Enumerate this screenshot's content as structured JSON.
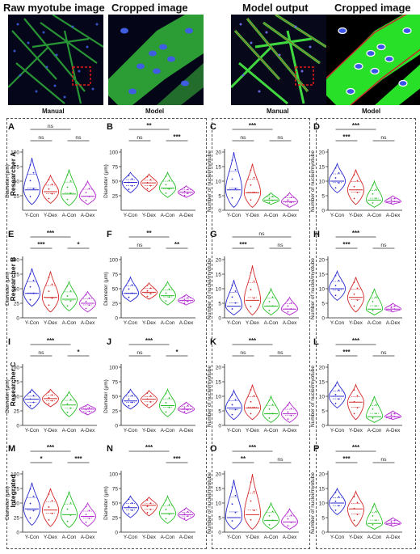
{
  "images": {
    "titles": [
      "Raw myotube image",
      "Cropped image",
      "Model output",
      "Cropped image"
    ],
    "sublabels": [
      "Manual",
      "Model",
      "Manual",
      "Model"
    ]
  },
  "row_labels": [
    "Researcher A",
    "Researcher B",
    "Researcher C",
    "Integrated"
  ],
  "categories": [
    "Y-Con",
    "Y-Dex",
    "A-Con",
    "A-Dex"
  ],
  "colors": {
    "Y-Con": "#2b2bd0",
    "Y-Dex": "#d42b2b",
    "A-Con": "#2bbf2b",
    "A-Dex": "#b32bd0"
  },
  "chart_data": [
    {
      "panel": "A",
      "type": "violin",
      "ylabel": "Diameter (μm)",
      "ylim": [
        0,
        100
      ],
      "yticks": [
        25,
        50,
        75,
        100
      ],
      "categories": [
        "Y-Con",
        "Y-Dex",
        "A-Con",
        "A-Dex"
      ],
      "medians": [
        35,
        32,
        28,
        24
      ],
      "ranges": [
        [
          10,
          90
        ],
        [
          12,
          60
        ],
        [
          8,
          70
        ],
        [
          10,
          50
        ]
      ],
      "sig": [
        {
          "pair": [
            0,
            2
          ],
          "label": "ns"
        },
        {
          "pair": [
            0,
            1
          ],
          "label": "ns"
        },
        {
          "pair": [
            2,
            3
          ],
          "label": "ns"
        }
      ]
    },
    {
      "panel": "B",
      "type": "violin",
      "ylabel": "Diameter (μm)",
      "ylim": [
        0,
        100
      ],
      "yticks": [
        25,
        50,
        75,
        100
      ],
      "categories": [
        "Y-Con",
        "Y-Dex",
        "A-Con",
        "A-Dex"
      ],
      "medians": [
        48,
        47,
        38,
        31
      ],
      "ranges": [
        [
          30,
          65
        ],
        [
          32,
          62
        ],
        [
          22,
          65
        ],
        [
          22,
          42
        ]
      ],
      "sig": [
        {
          "pair": [
            0,
            2
          ],
          "label": "**"
        },
        {
          "pair": [
            0,
            1
          ],
          "label": "ns"
        },
        {
          "pair": [
            2,
            3
          ],
          "label": "***"
        }
      ]
    },
    {
      "panel": "C",
      "type": "violin",
      "ylabel": "Number of nuclei/myotube",
      "ylim": [
        0,
        20
      ],
      "yticks": [
        0,
        5,
        10,
        15,
        20
      ],
      "categories": [
        "Y-Con",
        "Y-Dex",
        "A-Con",
        "A-Dex"
      ],
      "medians": [
        7,
        6,
        3.5,
        3
      ],
      "ranges": [
        [
          1,
          20
        ],
        [
          1,
          16
        ],
        [
          2,
          6
        ],
        [
          1,
          6
        ]
      ],
      "sig": [
        {
          "pair": [
            0,
            2
          ],
          "label": "***"
        },
        {
          "pair": [
            0,
            1
          ],
          "label": "ns"
        },
        {
          "pair": [
            2,
            3
          ],
          "label": "ns"
        }
      ]
    },
    {
      "panel": "D",
      "type": "violin",
      "ylabel": "Number of nuclei/myotube",
      "ylim": [
        0,
        20
      ],
      "yticks": [
        0,
        5,
        10,
        15,
        20
      ],
      "categories": [
        "Y-Con",
        "Y-Dex",
        "A-Con",
        "A-Dex"
      ],
      "medians": [
        10,
        7,
        3.5,
        3
      ],
      "ranges": [
        [
          6,
          16
        ],
        [
          2,
          14
        ],
        [
          1,
          10
        ],
        [
          2,
          5
        ]
      ],
      "sig": [
        {
          "pair": [
            0,
            2
          ],
          "label": "***"
        },
        {
          "pair": [
            0,
            1
          ],
          "label": "***"
        },
        {
          "pair": [
            2,
            3
          ],
          "label": "ns"
        }
      ]
    },
    {
      "panel": "E",
      "type": "violin",
      "ylabel": "Diameter (μm)",
      "ylim": [
        0,
        100
      ],
      "yticks": [
        0,
        25,
        50,
        75,
        100
      ],
      "categories": [
        "Y-Con",
        "Y-Dex",
        "A-Con",
        "A-Dex"
      ],
      "medians": [
        42,
        35,
        32,
        25
      ],
      "ranges": [
        [
          20,
          85
        ],
        [
          10,
          80
        ],
        [
          12,
          62
        ],
        [
          10,
          45
        ]
      ],
      "sig": [
        {
          "pair": [
            0,
            2
          ],
          "label": "***"
        },
        {
          "pair": [
            0,
            1
          ],
          "label": "***"
        },
        {
          "pair": [
            2,
            3
          ],
          "label": "*"
        }
      ]
    },
    {
      "panel": "F",
      "type": "violin",
      "ylabel": "Diameter (μm)",
      "ylim": [
        0,
        100
      ],
      "yticks": [
        0,
        25,
        50,
        75,
        100
      ],
      "categories": [
        "Y-Con",
        "Y-Dex",
        "A-Con",
        "A-Dex"
      ],
      "medians": [
        42,
        44,
        38,
        30
      ],
      "ranges": [
        [
          28,
          70
        ],
        [
          32,
          60
        ],
        [
          22,
          62
        ],
        [
          22,
          40
        ]
      ],
      "sig": [
        {
          "pair": [
            0,
            2
          ],
          "label": "**"
        },
        {
          "pair": [
            0,
            1
          ],
          "label": "ns"
        },
        {
          "pair": [
            2,
            3
          ],
          "label": "**"
        }
      ]
    },
    {
      "panel": "G",
      "type": "violin",
      "ylabel": "Number of nuclei/myotube",
      "ylim": [
        0,
        20
      ],
      "yticks": [
        0,
        5,
        10,
        15,
        20
      ],
      "categories": [
        "Y-Con",
        "Y-Dex",
        "A-Con",
        "A-Dex"
      ],
      "medians": [
        4,
        6,
        4,
        3
      ],
      "ranges": [
        [
          1,
          13
        ],
        [
          1,
          18
        ],
        [
          1,
          10
        ],
        [
          1,
          7
        ]
      ],
      "sig": [
        {
          "pair": [
            0,
            3
          ],
          "label": "ns"
        },
        {
          "pair": [
            0,
            1
          ],
          "label": "***"
        },
        {
          "pair": [
            2,
            3
          ],
          "label": "ns"
        }
      ]
    },
    {
      "panel": "H",
      "type": "violin",
      "ylabel": "Number of nuclei/myotube",
      "ylim": [
        0,
        20
      ],
      "yticks": [
        0,
        5,
        10,
        15,
        20
      ],
      "categories": [
        "Y-Con",
        "Y-Dex",
        "A-Con",
        "A-Dex"
      ],
      "medians": [
        10,
        7,
        3,
        3
      ],
      "ranges": [
        [
          6,
          16
        ],
        [
          2,
          14
        ],
        [
          1,
          10
        ],
        [
          2,
          5
        ]
      ],
      "sig": [
        {
          "pair": [
            0,
            2
          ],
          "label": "***"
        },
        {
          "pair": [
            0,
            1
          ],
          "label": "***"
        },
        {
          "pair": [
            2,
            3
          ],
          "label": "ns"
        }
      ]
    },
    {
      "panel": "I",
      "type": "violin",
      "ylabel": "Diameter (μm)",
      "ylim": [
        0,
        100
      ],
      "yticks": [
        0,
        25,
        50,
        75,
        100
      ],
      "categories": [
        "Y-Con",
        "Y-Dex",
        "A-Con",
        "A-Dex"
      ],
      "medians": [
        45,
        46,
        35,
        28
      ],
      "ranges": [
        [
          28,
          62
        ],
        [
          32,
          62
        ],
        [
          15,
          58
        ],
        [
          18,
          36
        ]
      ],
      "sig": [
        {
          "pair": [
            0,
            2
          ],
          "label": "***"
        },
        {
          "pair": [
            0,
            1
          ],
          "label": "ns"
        },
        {
          "pair": [
            2,
            3
          ],
          "label": "*"
        }
      ]
    },
    {
      "panel": "J",
      "type": "violin",
      "ylabel": "Diameter (μm)",
      "ylim": [
        0,
        100
      ],
      "yticks": [
        0,
        25,
        50,
        75,
        100
      ],
      "categories": [
        "Y-Con",
        "Y-Dex",
        "A-Con",
        "A-Dex"
      ],
      "medians": [
        42,
        45,
        34,
        28
      ],
      "ranges": [
        [
          28,
          62
        ],
        [
          30,
          60
        ],
        [
          15,
          62
        ],
        [
          20,
          40
        ]
      ],
      "sig": [
        {
          "pair": [
            0,
            2
          ],
          "label": "***"
        },
        {
          "pair": [
            0,
            1
          ],
          "label": "ns"
        },
        {
          "pair": [
            2,
            3
          ],
          "label": "*"
        }
      ]
    },
    {
      "panel": "K",
      "type": "violin",
      "ylabel": "Number of nuclei/myotube",
      "ylim": [
        0,
        20
      ],
      "yticks": [
        0,
        5,
        10,
        15,
        20
      ],
      "categories": [
        "Y-Con",
        "Y-Dex",
        "A-Con",
        "A-Dex"
      ],
      "medians": [
        6,
        6,
        4,
        4
      ],
      "ranges": [
        [
          2,
          12
        ],
        [
          2,
          14
        ],
        [
          1,
          10
        ],
        [
          1,
          8
        ]
      ],
      "sig": [
        {
          "pair": [
            0,
            2
          ],
          "label": "***"
        },
        {
          "pair": [
            0,
            1
          ],
          "label": "ns"
        },
        {
          "pair": [
            2,
            3
          ],
          "label": "ns"
        }
      ]
    },
    {
      "panel": "L",
      "type": "violin",
      "ylabel": "Number of nuclei/myotube",
      "ylim": [
        0,
        20
      ],
      "yticks": [
        0,
        5,
        10,
        15,
        20
      ],
      "categories": [
        "Y-Con",
        "Y-Dex",
        "A-Con",
        "A-Dex"
      ],
      "medians": [
        10,
        8,
        3,
        3
      ],
      "ranges": [
        [
          6,
          15
        ],
        [
          2,
          14
        ],
        [
          1,
          10
        ],
        [
          2,
          5
        ]
      ],
      "sig": [
        {
          "pair": [
            0,
            2
          ],
          "label": "***"
        },
        {
          "pair": [
            0,
            1
          ],
          "label": "***"
        },
        {
          "pair": [
            2,
            3
          ],
          "label": "ns"
        }
      ]
    },
    {
      "panel": "M",
      "type": "violin",
      "ylabel": "Diameter (μm)",
      "ylim": [
        0,
        100
      ],
      "yticks": [
        0,
        25,
        50,
        75,
        100
      ],
      "categories": [
        "Y-Con",
        "Y-Dex",
        "A-Con",
        "A-Dex"
      ],
      "medians": [
        40,
        38,
        30,
        27
      ],
      "ranges": [
        [
          12,
          85
        ],
        [
          10,
          75
        ],
        [
          8,
          70
        ],
        [
          10,
          50
        ]
      ],
      "sig": [
        {
          "pair": [
            0,
            2
          ],
          "label": "***"
        },
        {
          "pair": [
            0,
            1
          ],
          "label": "*"
        },
        {
          "pair": [
            2,
            3
          ],
          "label": "***"
        }
      ]
    },
    {
      "panel": "N",
      "type": "violin",
      "ylabel": "Diameter (μm)",
      "ylim": [
        0,
        100
      ],
      "yticks": [
        0,
        25,
        50,
        75,
        100
      ],
      "categories": [
        "Y-Con",
        "Y-Dex",
        "A-Con",
        "A-Dex"
      ],
      "medians": [
        42,
        46,
        32,
        30
      ],
      "ranges": [
        [
          25,
          62
        ],
        [
          28,
          60
        ],
        [
          15,
          62
        ],
        [
          20,
          42
        ]
      ],
      "sig": [
        {
          "pair": [
            0,
            2
          ],
          "label": "***"
        },
        {
          "pair": [
            2,
            3
          ],
          "label": "***"
        }
      ]
    },
    {
      "panel": "O",
      "type": "violin",
      "ylabel": "Number of nuclei/myotube",
      "ylim": [
        0,
        20
      ],
      "yticks": [
        0,
        5,
        10,
        15,
        20
      ],
      "categories": [
        "Y-Con",
        "Y-Dex",
        "A-Con",
        "A-Dex"
      ],
      "medians": [
        5,
        6,
        4,
        3.5
      ],
      "ranges": [
        [
          1,
          18
        ],
        [
          1,
          20
        ],
        [
          1,
          10
        ],
        [
          1,
          8
        ]
      ],
      "sig": [
        {
          "pair": [
            0,
            2
          ],
          "label": "***"
        },
        {
          "pair": [
            0,
            1
          ],
          "label": "**"
        },
        {
          "pair": [
            2,
            3
          ],
          "label": "ns"
        }
      ]
    },
    {
      "panel": "P",
      "type": "violin",
      "ylabel": "Number of nuclei/myotube",
      "ylim": [
        0,
        20
      ],
      "yticks": [
        0,
        5,
        10,
        15,
        20
      ],
      "categories": [
        "Y-Con",
        "Y-Dex",
        "A-Con",
        "A-Dex"
      ],
      "medians": [
        10,
        8,
        3,
        3
      ],
      "ranges": [
        [
          6,
          15
        ],
        [
          2,
          14
        ],
        [
          1,
          10
        ],
        [
          2,
          5
        ]
      ],
      "sig": [
        {
          "pair": [
            0,
            2
          ],
          "label": "***"
        },
        {
          "pair": [
            0,
            1
          ],
          "label": "***"
        },
        {
          "pair": [
            2,
            3
          ],
          "label": "ns"
        }
      ]
    }
  ]
}
